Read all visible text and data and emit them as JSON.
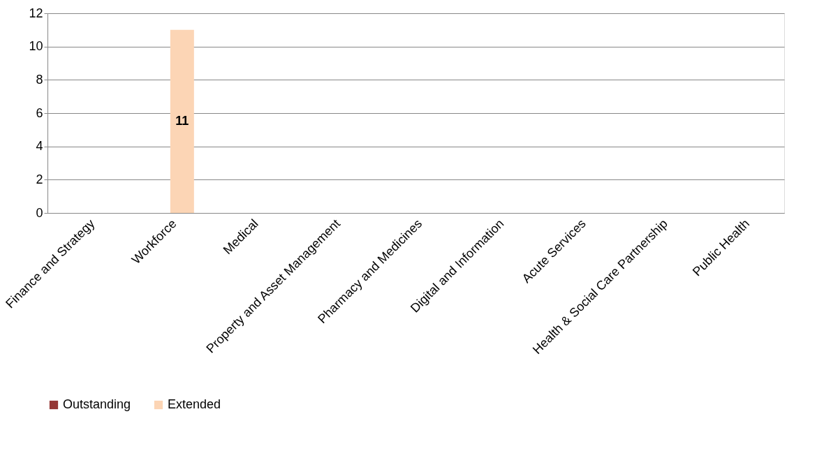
{
  "chart_data": {
    "type": "bar",
    "categories": [
      "Finance and Strategy",
      "Workforce",
      "Medical",
      "Property and Asset Management",
      "Pharmacy and Medicines",
      "Digital and Information",
      "Acute Services",
      "Health & Social Care Partnership",
      "Public Health"
    ],
    "series": [
      {
        "name": "Outstanding",
        "color": "#953735",
        "values": [
          null,
          null,
          null,
          null,
          null,
          null,
          null,
          null,
          null
        ]
      },
      {
        "name": "Extended",
        "color": "#fcd5b5",
        "values": [
          null,
          11,
          null,
          null,
          null,
          null,
          null,
          null,
          null
        ]
      }
    ],
    "ylim": [
      0,
      12
    ],
    "yticks": [
      0,
      2,
      4,
      6,
      8,
      10,
      12
    ],
    "grid": "y",
    "legend": "bottom",
    "data_labels": true
  }
}
